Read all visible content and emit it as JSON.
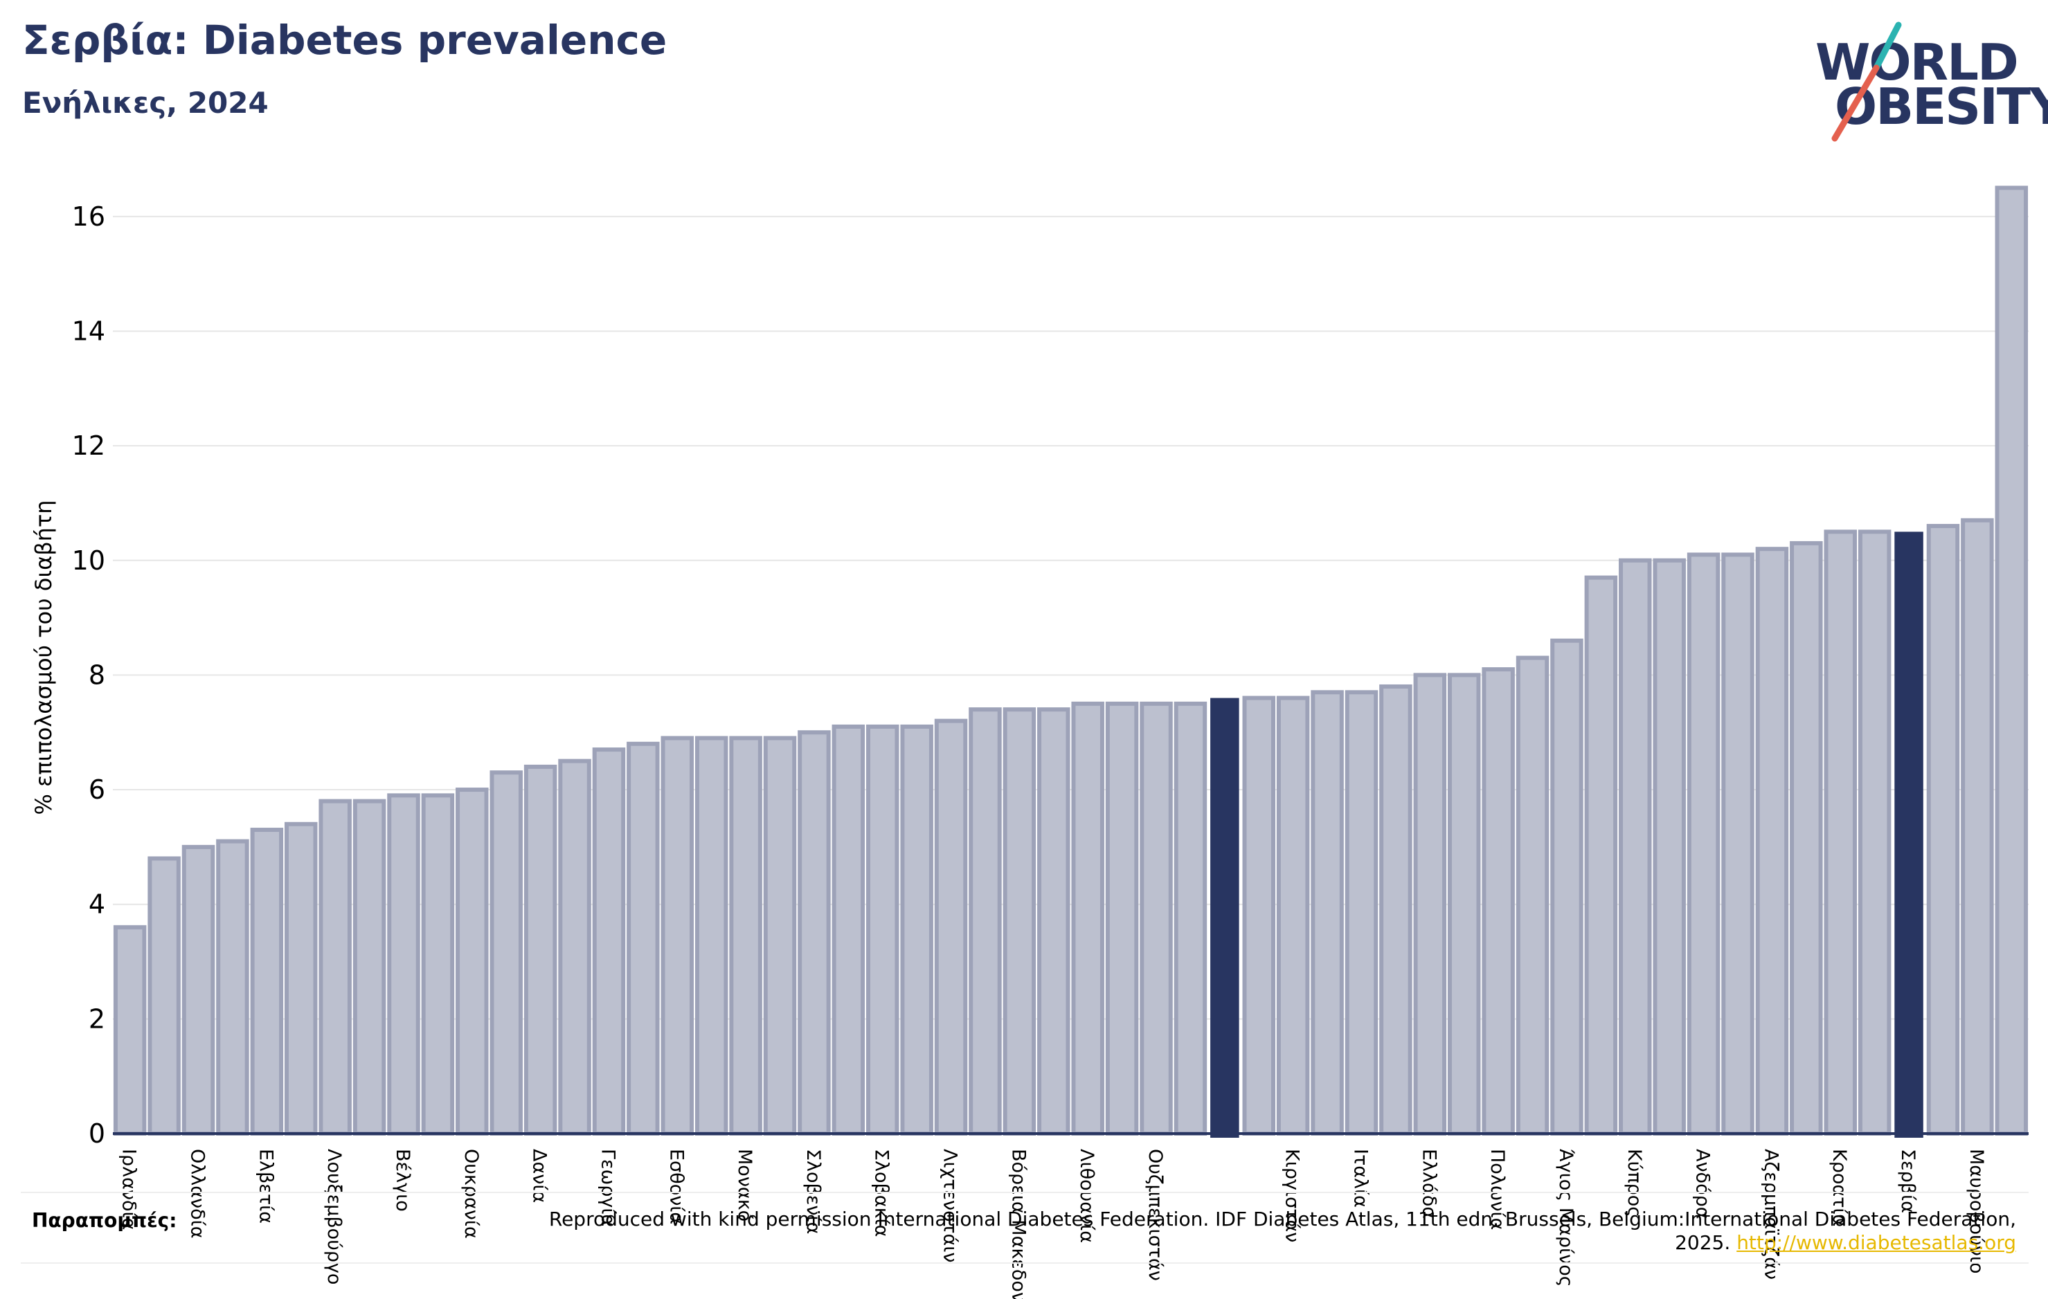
{
  "header": {
    "title": "Σερβία: Diabetes prevalence",
    "subtitle": "Ενήλικες, 2024"
  },
  "logo": {
    "line1": "WORLD",
    "line2": "OBESITY",
    "colors": {
      "text": "#283561",
      "slash_teal": "#2bb3b1",
      "slash_red": "#e4604e"
    }
  },
  "references": {
    "label": "Παραπομπές:",
    "text": "Reproduced with kind permission International Diabetes Federation. IDF Diabetes Atlas, 11th edn. Brussels, Belgium:International Diabetes Federation, 2025.",
    "link": "http://www.diabetesatlas.org"
  },
  "colors": {
    "bar": "#bcc0cf",
    "bar_edge": "#9da2b8",
    "highlight": "#283561",
    "axis": "#283561",
    "grid": "#e6e6e6"
  },
  "chart_data": {
    "type": "bar",
    "title": "Σερβία: Diabetes prevalence",
    "subtitle": "Ενήλικες, 2024",
    "ylabel": "% επιπολασμού του διαβήτη",
    "xlabel": "",
    "ylim": [
      0,
      17
    ],
    "yticks": [
      0,
      2,
      4,
      6,
      8,
      10,
      12,
      14,
      16
    ],
    "grid": true,
    "highlight_indices": [
      32,
      52
    ],
    "categories": [
      "Ιρλανδία",
      "",
      "Ολλανδία",
      "",
      "Ελβετία",
      "",
      "Λουξεμβούργο",
      "",
      "Βέλγιο",
      "",
      "Ουκρανία",
      "",
      "Δανία",
      "",
      "Γεωργία",
      "",
      "Εσθονία",
      "",
      "Μονακό",
      "",
      "Σλοβενία",
      "",
      "Σλοβακία",
      "",
      "Λιχτενστάιν",
      "",
      "Βόρεια Μακεδονία",
      "",
      "Λιθουανία",
      "",
      "Ουζμπεκιστάν",
      "",
      "",
      "",
      "Κιργιστάν",
      "",
      "Ιταλία",
      "",
      "Ελλάδα",
      "",
      "Πολωνία",
      "",
      "Άγιος Μαρίνος",
      "",
      "Κύπρος",
      "",
      "Ανδόρα",
      "",
      "Αζερμπαϊτζάν",
      "",
      "Κροατία",
      "",
      "Σερβία",
      "",
      "Μαυροβούνιο",
      ""
    ],
    "values": [
      3.6,
      4.8,
      5.0,
      5.1,
      5.3,
      5.4,
      5.8,
      5.8,
      5.9,
      5.9,
      6.0,
      6.3,
      6.4,
      6.5,
      6.7,
      6.8,
      6.9,
      6.9,
      6.9,
      6.9,
      7.0,
      7.1,
      7.1,
      7.1,
      7.2,
      7.4,
      7.4,
      7.4,
      7.5,
      7.5,
      7.5,
      7.5,
      7.6,
      7.6,
      7.6,
      7.7,
      7.7,
      7.8,
      8.0,
      8.0,
      8.1,
      8.3,
      8.6,
      9.7,
      10.0,
      10.0,
      10.1,
      10.1,
      10.2,
      10.3,
      10.5,
      10.5,
      10.5,
      10.6,
      10.7,
      16.5
    ]
  }
}
